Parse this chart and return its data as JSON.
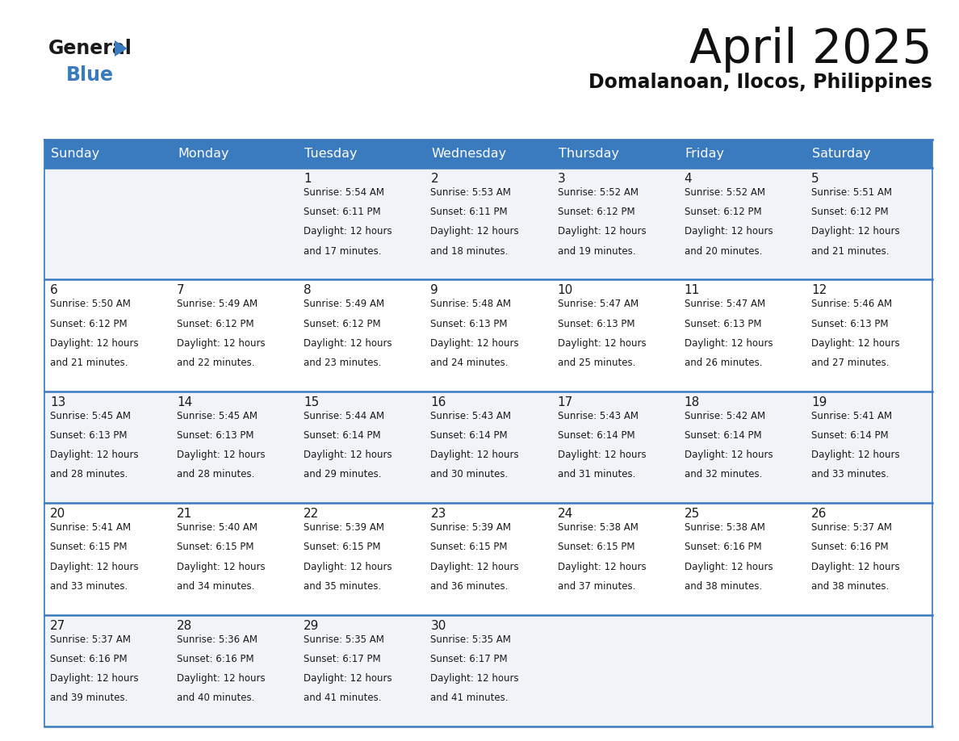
{
  "title": "April 2025",
  "subtitle": "Domalanoan, Ilocos, Philippines",
  "header_color": "#3a7abf",
  "header_text_color": "#ffffff",
  "background_color": "#ffffff",
  "separator_color": "#3a7abf",
  "days_of_week": [
    "Sunday",
    "Monday",
    "Tuesday",
    "Wednesday",
    "Thursday",
    "Friday",
    "Saturday"
  ],
  "cell_bg_odd": "#f0f4f8",
  "cell_bg_even": "#ffffff",
  "days": [
    {
      "day": 1,
      "col": 2,
      "row": 0,
      "sunrise": "5:54 AM",
      "sunset": "6:11 PM",
      "daylight_hours": 12,
      "daylight_minutes": 17
    },
    {
      "day": 2,
      "col": 3,
      "row": 0,
      "sunrise": "5:53 AM",
      "sunset": "6:11 PM",
      "daylight_hours": 12,
      "daylight_minutes": 18
    },
    {
      "day": 3,
      "col": 4,
      "row": 0,
      "sunrise": "5:52 AM",
      "sunset": "6:12 PM",
      "daylight_hours": 12,
      "daylight_minutes": 19
    },
    {
      "day": 4,
      "col": 5,
      "row": 0,
      "sunrise": "5:52 AM",
      "sunset": "6:12 PM",
      "daylight_hours": 12,
      "daylight_minutes": 20
    },
    {
      "day": 5,
      "col": 6,
      "row": 0,
      "sunrise": "5:51 AM",
      "sunset": "6:12 PM",
      "daylight_hours": 12,
      "daylight_minutes": 21
    },
    {
      "day": 6,
      "col": 0,
      "row": 1,
      "sunrise": "5:50 AM",
      "sunset": "6:12 PM",
      "daylight_hours": 12,
      "daylight_minutes": 21
    },
    {
      "day": 7,
      "col": 1,
      "row": 1,
      "sunrise": "5:49 AM",
      "sunset": "6:12 PM",
      "daylight_hours": 12,
      "daylight_minutes": 22
    },
    {
      "day": 8,
      "col": 2,
      "row": 1,
      "sunrise": "5:49 AM",
      "sunset": "6:12 PM",
      "daylight_hours": 12,
      "daylight_minutes": 23
    },
    {
      "day": 9,
      "col": 3,
      "row": 1,
      "sunrise": "5:48 AM",
      "sunset": "6:13 PM",
      "daylight_hours": 12,
      "daylight_minutes": 24
    },
    {
      "day": 10,
      "col": 4,
      "row": 1,
      "sunrise": "5:47 AM",
      "sunset": "6:13 PM",
      "daylight_hours": 12,
      "daylight_minutes": 25
    },
    {
      "day": 11,
      "col": 5,
      "row": 1,
      "sunrise": "5:47 AM",
      "sunset": "6:13 PM",
      "daylight_hours": 12,
      "daylight_minutes": 26
    },
    {
      "day": 12,
      "col": 6,
      "row": 1,
      "sunrise": "5:46 AM",
      "sunset": "6:13 PM",
      "daylight_hours": 12,
      "daylight_minutes": 27
    },
    {
      "day": 13,
      "col": 0,
      "row": 2,
      "sunrise": "5:45 AM",
      "sunset": "6:13 PM",
      "daylight_hours": 12,
      "daylight_minutes": 28
    },
    {
      "day": 14,
      "col": 1,
      "row": 2,
      "sunrise": "5:45 AM",
      "sunset": "6:13 PM",
      "daylight_hours": 12,
      "daylight_minutes": 28
    },
    {
      "day": 15,
      "col": 2,
      "row": 2,
      "sunrise": "5:44 AM",
      "sunset": "6:14 PM",
      "daylight_hours": 12,
      "daylight_minutes": 29
    },
    {
      "day": 16,
      "col": 3,
      "row": 2,
      "sunrise": "5:43 AM",
      "sunset": "6:14 PM",
      "daylight_hours": 12,
      "daylight_minutes": 30
    },
    {
      "day": 17,
      "col": 4,
      "row": 2,
      "sunrise": "5:43 AM",
      "sunset": "6:14 PM",
      "daylight_hours": 12,
      "daylight_minutes": 31
    },
    {
      "day": 18,
      "col": 5,
      "row": 2,
      "sunrise": "5:42 AM",
      "sunset": "6:14 PM",
      "daylight_hours": 12,
      "daylight_minutes": 32
    },
    {
      "day": 19,
      "col": 6,
      "row": 2,
      "sunrise": "5:41 AM",
      "sunset": "6:14 PM",
      "daylight_hours": 12,
      "daylight_minutes": 33
    },
    {
      "day": 20,
      "col": 0,
      "row": 3,
      "sunrise": "5:41 AM",
      "sunset": "6:15 PM",
      "daylight_hours": 12,
      "daylight_minutes": 33
    },
    {
      "day": 21,
      "col": 1,
      "row": 3,
      "sunrise": "5:40 AM",
      "sunset": "6:15 PM",
      "daylight_hours": 12,
      "daylight_minutes": 34
    },
    {
      "day": 22,
      "col": 2,
      "row": 3,
      "sunrise": "5:39 AM",
      "sunset": "6:15 PM",
      "daylight_hours": 12,
      "daylight_minutes": 35
    },
    {
      "day": 23,
      "col": 3,
      "row": 3,
      "sunrise": "5:39 AM",
      "sunset": "6:15 PM",
      "daylight_hours": 12,
      "daylight_minutes": 36
    },
    {
      "day": 24,
      "col": 4,
      "row": 3,
      "sunrise": "5:38 AM",
      "sunset": "6:15 PM",
      "daylight_hours": 12,
      "daylight_minutes": 37
    },
    {
      "day": 25,
      "col": 5,
      "row": 3,
      "sunrise": "5:38 AM",
      "sunset": "6:16 PM",
      "daylight_hours": 12,
      "daylight_minutes": 38
    },
    {
      "day": 26,
      "col": 6,
      "row": 3,
      "sunrise": "5:37 AM",
      "sunset": "6:16 PM",
      "daylight_hours": 12,
      "daylight_minutes": 38
    },
    {
      "day": 27,
      "col": 0,
      "row": 4,
      "sunrise": "5:37 AM",
      "sunset": "6:16 PM",
      "daylight_hours": 12,
      "daylight_minutes": 39
    },
    {
      "day": 28,
      "col": 1,
      "row": 4,
      "sunrise": "5:36 AM",
      "sunset": "6:16 PM",
      "daylight_hours": 12,
      "daylight_minutes": 40
    },
    {
      "day": 29,
      "col": 2,
      "row": 4,
      "sunrise": "5:35 AM",
      "sunset": "6:17 PM",
      "daylight_hours": 12,
      "daylight_minutes": 41
    },
    {
      "day": 30,
      "col": 3,
      "row": 4,
      "sunrise": "5:35 AM",
      "sunset": "6:17 PM",
      "daylight_hours": 12,
      "daylight_minutes": 41
    }
  ],
  "logo_general_color": "#1a1a1a",
  "logo_blue_color": "#3a7abf",
  "title_fontsize": 42,
  "subtitle_fontsize": 17,
  "dow_fontsize": 11.5,
  "day_num_fontsize": 11,
  "cell_text_fontsize": 8.5
}
